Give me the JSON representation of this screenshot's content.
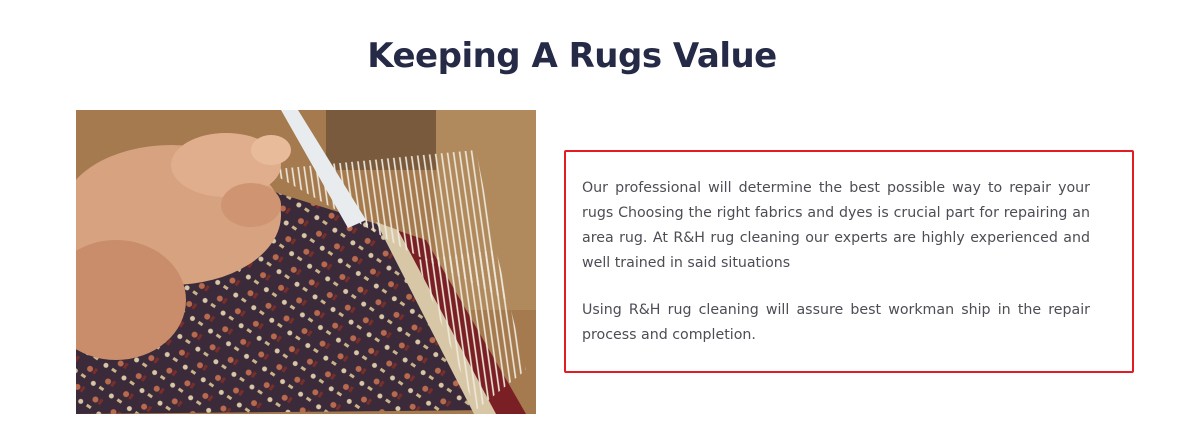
{
  "section": {
    "title": "Keeping A Rugs Value"
  },
  "image": {
    "icon": "rug-repair-photo"
  },
  "content": {
    "paragraph_1": "Our professional will determine the best possible way to repair your rugs Choosing the right fabrics and dyes is crucial part for repairing an area rug. At R&H rug cleaning our experts are highly experienced and well trained in said situations",
    "paragraph_2": "Using R&H rug cleaning will assure best workman ship in the repair process and completion."
  },
  "colors": {
    "title": "#252a47",
    "body_text": "#4d4d55",
    "highlight_border": "#e31b23"
  }
}
